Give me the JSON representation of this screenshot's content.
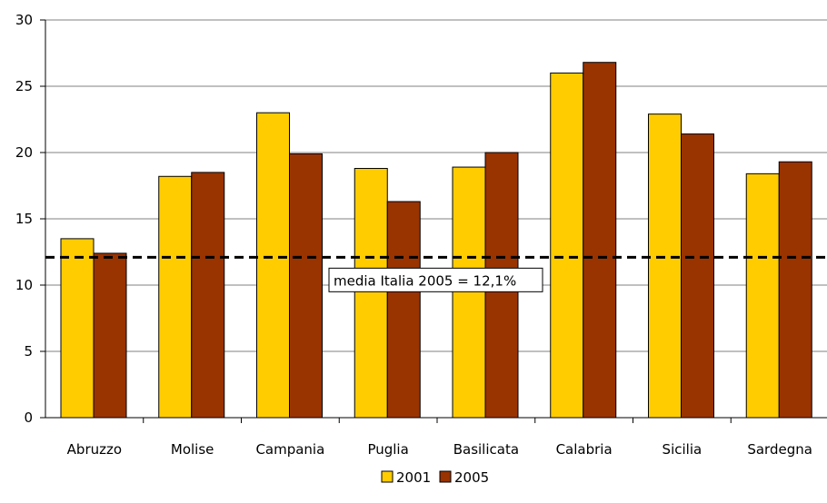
{
  "chart_data": {
    "type": "bar",
    "title": "",
    "xlabel": "",
    "ylabel": "",
    "ylim": [
      0,
      30
    ],
    "yticks": [
      0,
      5,
      10,
      15,
      20,
      25,
      30
    ],
    "grid": true,
    "legend_position": "bottom-center",
    "categories": [
      "Abruzzo",
      "Molise",
      "Campania",
      "Puglia",
      "Basilicata",
      "Calabria",
      "Sicilia",
      "Sardegna"
    ],
    "series": [
      {
        "name": "2001",
        "color": "#FFCC00",
        "values": [
          13.5,
          18.2,
          23.0,
          18.8,
          18.9,
          26.0,
          22.9,
          18.4
        ]
      },
      {
        "name": "2005",
        "color": "#993300",
        "values": [
          12.4,
          18.5,
          19.9,
          16.3,
          20.0,
          26.8,
          21.4,
          19.3
        ]
      }
    ],
    "reference_line": {
      "value": 12.1,
      "label": "media Italia 2005 = 12,1%"
    }
  }
}
